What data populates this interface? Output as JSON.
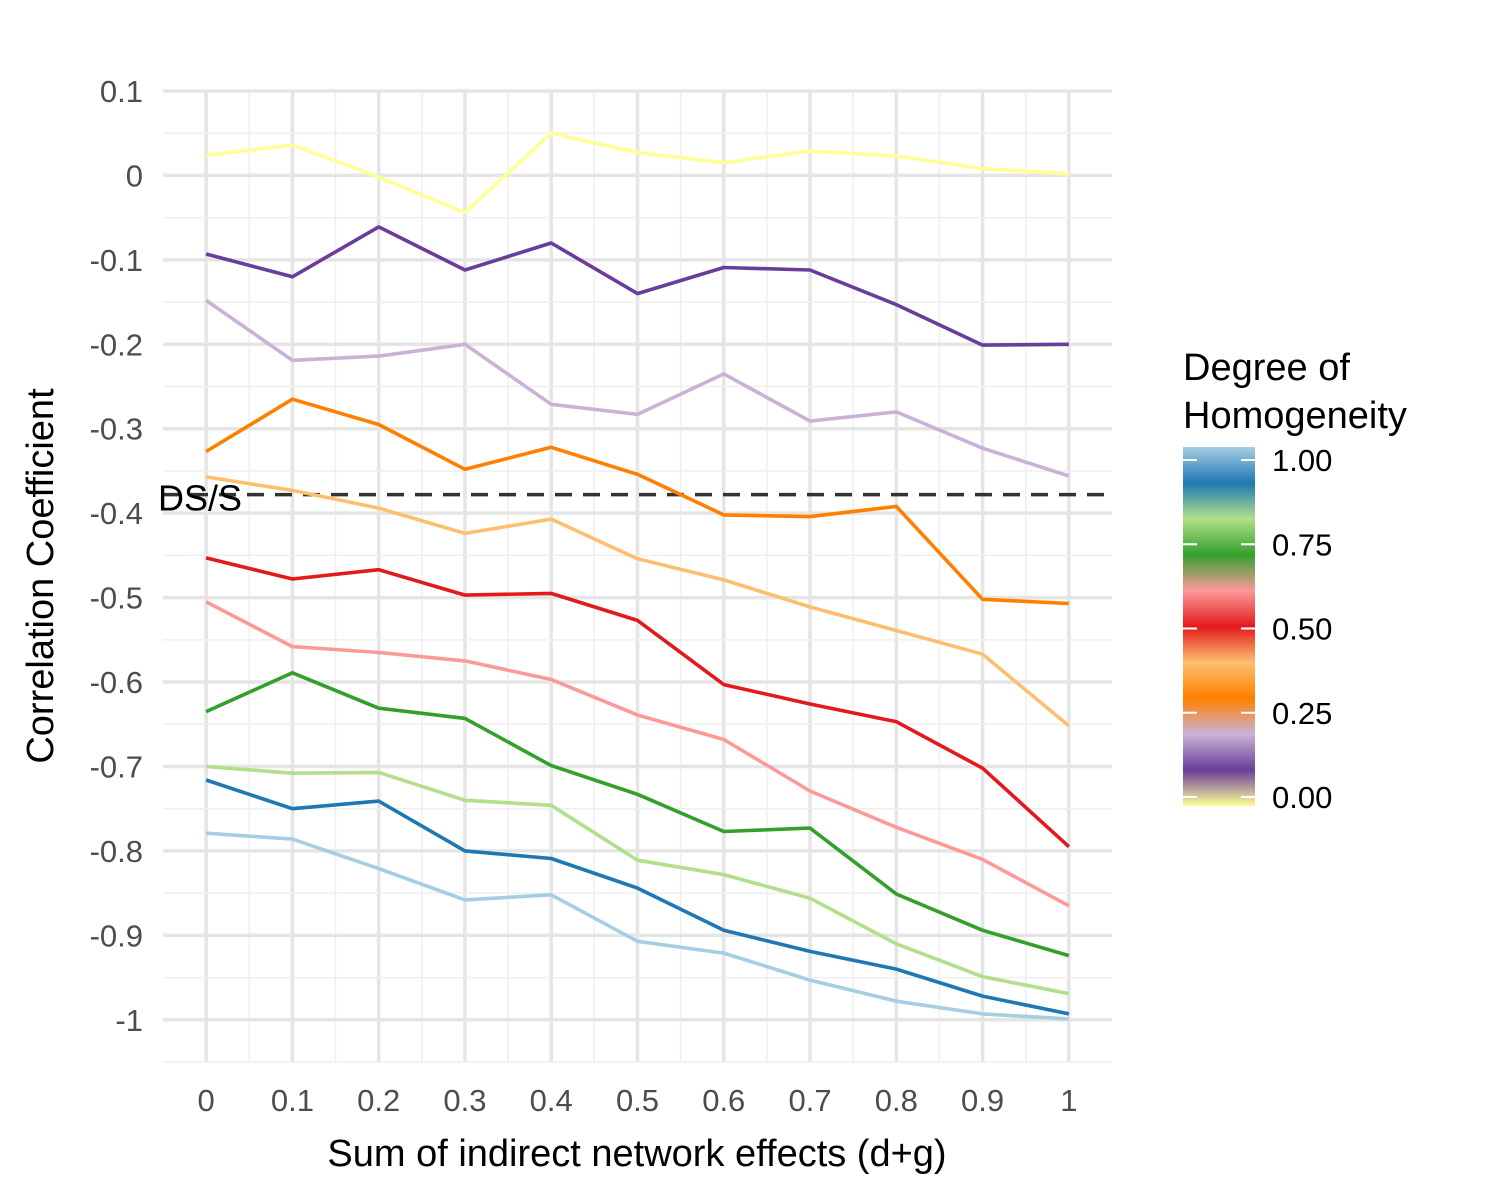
{
  "chart_data": {
    "type": "line",
    "xlabel": "Sum of indirect network effects (d+g)",
    "ylabel": "Correlation Coefficient",
    "x": [
      0,
      0.1,
      0.2,
      0.3,
      0.4,
      0.5,
      0.6,
      0.7,
      0.8,
      0.9,
      1
    ],
    "x_tick_labels": [
      "0",
      "0.1",
      "0.2",
      "0.3",
      "0.4",
      "0.5",
      "0.6",
      "0.7",
      "0.8",
      "0.9",
      "1"
    ],
    "y_ticks": [
      0.1,
      0,
      -0.1,
      -0.2,
      -0.3,
      -0.4,
      -0.5,
      -0.6,
      -0.7,
      -0.8,
      -0.9,
      -1
    ],
    "y_tick_labels": [
      "0.1",
      "0",
      "-0.1",
      "-0.2",
      "-0.3",
      "-0.4",
      "-0.5",
      "-0.6",
      "-0.7",
      "-0.8",
      "-0.9",
      "-1"
    ],
    "xlim": [
      -0.05,
      1.05
    ],
    "ylim": [
      -1.05,
      0.1
    ],
    "grid": true,
    "reference_line": {
      "y": -0.378,
      "label": "DS/S",
      "style": "dashed",
      "color": "#333333"
    },
    "legend": {
      "title_lines": [
        "Degree of",
        "Homogeneity"
      ],
      "placement": "right",
      "labels": [
        "1.00",
        "0.75",
        "0.50",
        "0.25",
        "0.00"
      ],
      "label_values": [
        1.0,
        0.75,
        0.5,
        0.25,
        0.0
      ],
      "gradient_colors": [
        "#a6cee3",
        "#1f78b4",
        "#b2df8a",
        "#33a02c",
        "#fb9a99",
        "#e31a1c",
        "#fdbf6f",
        "#ff7f00",
        "#cab2d6",
        "#6a3d9a",
        "#ffff99"
      ]
    },
    "series": [
      {
        "homogeneity": 0.0,
        "color": "#ffff99",
        "values": [
          0.024,
          0.036,
          -0.002,
          -0.044,
          0.05,
          0.027,
          0.015,
          0.029,
          0.023,
          0.008,
          0.002
        ]
      },
      {
        "homogeneity": 0.1,
        "color": "#6a3d9a",
        "values": [
          -0.093,
          -0.12,
          -0.061,
          -0.112,
          -0.08,
          -0.14,
          -0.109,
          -0.112,
          -0.153,
          -0.201,
          -0.2
        ]
      },
      {
        "homogeneity": 0.2,
        "color": "#cab2d6",
        "values": [
          -0.148,
          -0.219,
          -0.214,
          -0.2,
          -0.271,
          -0.283,
          -0.235,
          -0.291,
          -0.28,
          -0.323,
          -0.356
        ]
      },
      {
        "homogeneity": 0.3,
        "color": "#ff7f00",
        "values": [
          -0.327,
          -0.265,
          -0.295,
          -0.348,
          -0.322,
          -0.354,
          -0.402,
          -0.404,
          -0.392,
          -0.502,
          -0.507
        ]
      },
      {
        "homogeneity": 0.4,
        "color": "#fdbf6f",
        "values": [
          -0.357,
          -0.373,
          -0.394,
          -0.424,
          -0.407,
          -0.454,
          -0.479,
          -0.511,
          -0.539,
          -0.567,
          -0.652
        ]
      },
      {
        "homogeneity": 0.5,
        "color": "#e31a1c",
        "values": [
          -0.453,
          -0.478,
          -0.467,
          -0.497,
          -0.495,
          -0.527,
          -0.603,
          -0.626,
          -0.647,
          -0.702,
          -0.795
        ]
      },
      {
        "homogeneity": 0.6,
        "color": "#fb9a99",
        "values": [
          -0.505,
          -0.558,
          -0.565,
          -0.575,
          -0.597,
          -0.639,
          -0.668,
          -0.729,
          -0.772,
          -0.81,
          -0.865
        ]
      },
      {
        "homogeneity": 0.7,
        "color": "#33a02c",
        "values": [
          -0.635,
          -0.589,
          -0.631,
          -0.643,
          -0.699,
          -0.733,
          -0.777,
          -0.773,
          -0.851,
          -0.894,
          -0.924
        ]
      },
      {
        "homogeneity": 0.8,
        "color": "#b2df8a",
        "values": [
          -0.7,
          -0.708,
          -0.707,
          -0.74,
          -0.746,
          -0.811,
          -0.828,
          -0.856,
          -0.91,
          -0.949,
          -0.969
        ]
      },
      {
        "homogeneity": 0.9,
        "color": "#1f78b4",
        "values": [
          -0.716,
          -0.75,
          -0.741,
          -0.8,
          -0.809,
          -0.844,
          -0.894,
          -0.919,
          -0.94,
          -0.972,
          -0.993
        ]
      },
      {
        "homogeneity": 1.0,
        "color": "#a6cee3",
        "values": [
          -0.779,
          -0.786,
          -0.821,
          -0.858,
          -0.852,
          -0.907,
          -0.921,
          -0.953,
          -0.978,
          -0.993,
          -0.999
        ]
      }
    ]
  }
}
